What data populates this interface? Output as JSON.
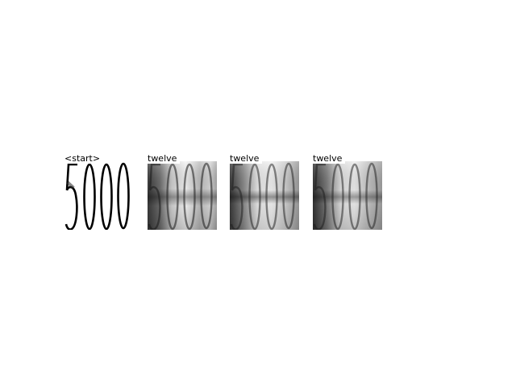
{
  "panels": [
    {
      "label": "<start>",
      "style": "input-digits"
    },
    {
      "label": "twelve",
      "style": "attention-map"
    },
    {
      "label": "twelve",
      "style": "attention-map"
    },
    {
      "label": "twelve",
      "style": "attention-map"
    }
  ],
  "colors": {
    "background": "#ffffff",
    "ink": "#000000"
  }
}
